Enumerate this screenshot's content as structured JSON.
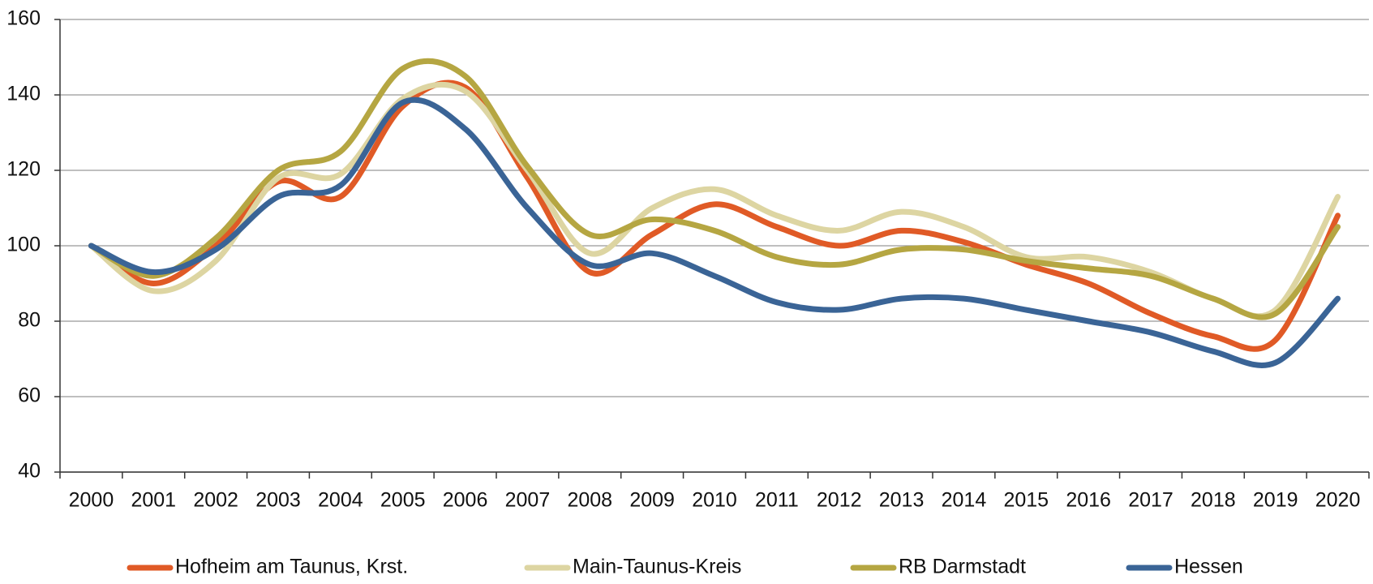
{
  "chart_data": {
    "type": "line",
    "categories": [
      "2000",
      "2001",
      "2002",
      "2003",
      "2004",
      "2005",
      "2006",
      "2007",
      "2008",
      "2009",
      "2010",
      "2011",
      "2012",
      "2013",
      "2014",
      "2015",
      "2016",
      "2017",
      "2018",
      "2019",
      "2020"
    ],
    "series": [
      {
        "name": "Hofheim am Taunus, Krst.",
        "color": "#e05a26",
        "values": [
          100,
          90,
          100,
          117,
          113,
          137,
          142,
          118,
          93,
          103,
          111,
          105,
          100,
          104,
          101,
          95,
          90,
          82,
          76,
          75,
          108
        ]
      },
      {
        "name": "Main-Taunus-Kreis",
        "color": "#ddd5a2",
        "values": [
          100,
          88,
          96,
          118,
          119,
          139,
          141,
          120,
          98,
          110,
          115,
          108,
          104,
          109,
          105,
          97,
          97,
          93,
          86,
          83,
          113
        ]
      },
      {
        "name": "RB Darmstadt",
        "color": "#b5a642",
        "values": [
          100,
          92,
          102,
          120,
          125,
          147,
          145,
          121,
          103,
          107,
          104,
          97,
          95,
          99,
          99,
          96,
          94,
          92,
          86,
          82,
          105
        ]
      },
      {
        "name": "Hessen",
        "color": "#3a6496",
        "values": [
          100,
          93,
          99,
          113,
          116,
          138,
          131,
          110,
          95,
          98,
          92,
          85,
          83,
          86,
          86,
          83,
          80,
          77,
          72,
          69,
          86
        ]
      }
    ],
    "ylim": [
      40,
      160
    ],
    "yticks": [
      40,
      60,
      80,
      100,
      120,
      140,
      160
    ],
    "grid": true,
    "smooth": true,
    "legend": "bottom"
  }
}
